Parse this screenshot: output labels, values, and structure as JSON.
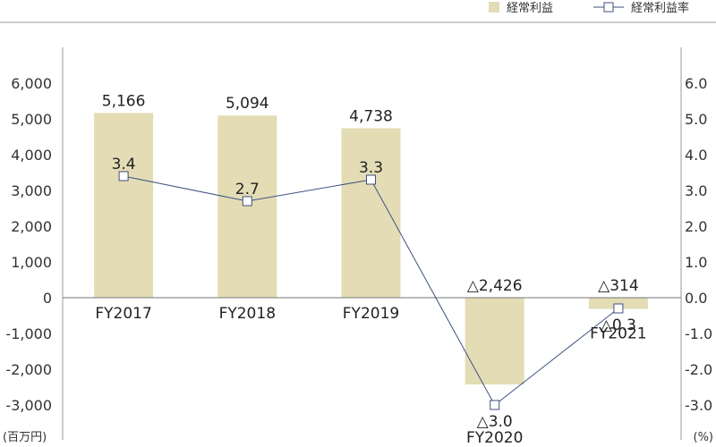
{
  "chart_data": {
    "type": "bar",
    "categories": [
      "FY2017",
      "FY2018",
      "FY2019",
      "FY2020",
      "FY2021"
    ],
    "series": [
      {
        "name": "経常利益",
        "type": "bar",
        "axis": "left",
        "color": "#e3dcb5",
        "values": [
          5166,
          5094,
          4738,
          -2426,
          -314
        ],
        "labels": [
          "5,166",
          "5,094",
          "4,738",
          "△2,426",
          "△314"
        ]
      },
      {
        "name": "経常利益率",
        "type": "line",
        "axis": "right",
        "color": "#3d5280",
        "values": [
          3.4,
          2.7,
          3.3,
          -3.0,
          -0.3
        ],
        "labels": [
          "3.4",
          "2.7",
          "3.3",
          "△3.0",
          "△0.3"
        ]
      }
    ],
    "y_left": {
      "unit": "(百万円)",
      "ylim": [
        -3000,
        6000
      ],
      "ticks": [
        6000,
        5000,
        4000,
        3000,
        2000,
        1000,
        0,
        -1000,
        -2000,
        -3000
      ],
      "tick_labels": [
        "6,000",
        "5,000",
        "4,000",
        "3,000",
        "2,000",
        "1,000",
        "0",
        "-1,000",
        "-2,000",
        "-3,000"
      ]
    },
    "y_right": {
      "unit": "(%)",
      "ylim": [
        -3.0,
        6.0
      ],
      "ticks": [
        6.0,
        5.0,
        4.0,
        3.0,
        2.0,
        1.0,
        0.0,
        -1.0,
        -2.0,
        -3.0
      ],
      "tick_labels": [
        "6.0",
        "5.0",
        "4.0",
        "3.0",
        "2.0",
        "1.0",
        "0.0",
        "-1.0",
        "-2.0",
        "-3.0"
      ]
    },
    "legend": {
      "position": "top-right",
      "items": [
        {
          "label": "経常利益",
          "marker": "square-fill"
        },
        {
          "label": "経常利益率",
          "marker": "line-square"
        }
      ]
    },
    "grid": false
  }
}
